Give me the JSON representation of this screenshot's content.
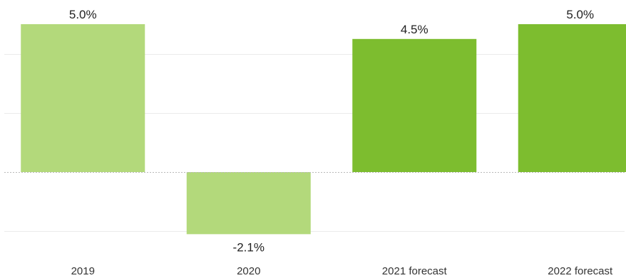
{
  "chart_data": {
    "type": "bar",
    "categories": [
      "2019",
      "2020",
      "2021 forecast",
      "2022 forecast"
    ],
    "values": [
      5.0,
      -2.1,
      4.5,
      5.0
    ],
    "data_labels": [
      "5.0%",
      "-2.1%",
      "4.5%",
      "5.0%"
    ],
    "bar_colors": [
      "#b3d97b",
      "#b3d97b",
      "#7dbd2f",
      "#7dbd2f"
    ],
    "gridline_values": [
      -2,
      2,
      4
    ],
    "ylim": [
      -3,
      5
    ],
    "title": "",
    "xlabel": "",
    "ylabel": "",
    "grid": true,
    "legend": "none"
  }
}
